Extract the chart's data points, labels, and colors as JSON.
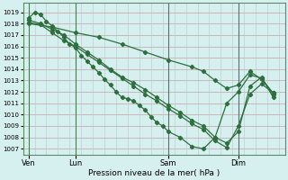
{
  "title": "",
  "xlabel": "Pression niveau de la mer( hPa )",
  "background_color": "#d6f0f0",
  "line_color": "#2d6e3e",
  "ylim": [
    1006.5,
    1019.8
  ],
  "yticks": [
    1007,
    1008,
    1009,
    1010,
    1011,
    1012,
    1013,
    1014,
    1015,
    1016,
    1017,
    1018,
    1019
  ],
  "xtick_labels": [
    "Ven",
    "Lun",
    "Sam",
    "Dim"
  ],
  "xtick_positions": [
    0,
    24,
    72,
    108
  ],
  "xlim": [
    -3,
    132
  ],
  "series1_x": [
    0,
    3,
    6,
    9,
    12,
    15,
    18,
    21,
    24,
    27,
    30,
    33,
    36,
    39,
    42,
    45,
    48,
    51,
    54,
    57,
    60,
    63,
    66,
    69,
    72,
    78,
    84,
    90,
    96,
    102,
    108,
    114,
    120,
    126
  ],
  "series1_y": [
    1018.5,
    1019.0,
    1018.8,
    1018.2,
    1017.8,
    1017.3,
    1016.8,
    1016.2,
    1015.9,
    1015.2,
    1014.7,
    1014.2,
    1013.7,
    1013.1,
    1012.6,
    1012.0,
    1011.5,
    1011.4,
    1011.2,
    1010.8,
    1010.4,
    1009.8,
    1009.3,
    1009.0,
    1008.5,
    1008.0,
    1007.2,
    1007.0,
    1008.0,
    1011.0,
    1012.0,
    1013.5,
    1013.2,
    1011.8
  ],
  "series2_x": [
    0,
    6,
    12,
    18,
    24,
    30,
    36,
    42,
    48,
    54,
    60,
    66,
    72,
    78,
    84,
    90,
    96,
    102,
    108,
    114,
    120,
    126
  ],
  "series2_y": [
    1018.3,
    1018.0,
    1017.5,
    1017.0,
    1016.2,
    1015.5,
    1014.8,
    1014.0,
    1013.3,
    1012.8,
    1012.2,
    1011.5,
    1010.8,
    1010.2,
    1009.5,
    1009.0,
    1008.0,
    1007.5,
    1008.5,
    1012.5,
    1013.3,
    1011.5
  ],
  "series3_x": [
    0,
    6,
    12,
    18,
    24,
    30,
    36,
    42,
    48,
    54,
    60,
    66,
    72,
    78,
    84,
    90,
    96,
    102,
    108,
    114,
    120,
    126
  ],
  "series3_y": [
    1018.1,
    1017.9,
    1017.2,
    1016.5,
    1016.0,
    1015.3,
    1014.6,
    1013.9,
    1013.2,
    1012.5,
    1011.8,
    1011.2,
    1010.5,
    1009.9,
    1009.2,
    1008.7,
    1007.7,
    1007.1,
    1009.0,
    1011.8,
    1012.7,
    1011.9
  ],
  "series4_x": [
    0,
    12,
    24,
    36,
    48,
    60,
    72,
    84,
    90,
    96,
    102,
    108,
    114,
    120,
    126
  ],
  "series4_y": [
    1018.0,
    1017.7,
    1017.2,
    1016.8,
    1016.2,
    1015.5,
    1014.8,
    1014.2,
    1013.8,
    1013.0,
    1012.3,
    1012.6,
    1013.8,
    1013.1,
    1011.9
  ],
  "vline_color": "#4a7a5a",
  "grid_color_h": "#c8a0a0",
  "grid_color_v": "#b8c8c8"
}
